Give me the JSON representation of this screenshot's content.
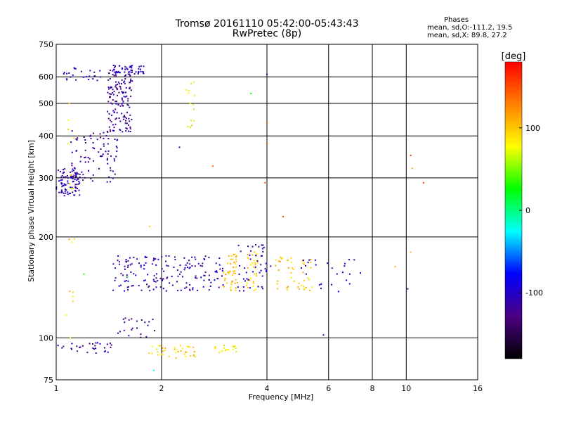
{
  "header": {
    "title_line1": "Tromsø 20161110 05:42:00-05:43:43",
    "title_line2": "RwPretec (8p)",
    "phases_title": "Phases",
    "phases_o": "mean, sd,O:-111.2, 19.5",
    "phases_x": "mean, sd,X:  89.8, 27.2"
  },
  "colorbar": {
    "label": "[deg]",
    "ticks": [
      "100",
      "0",
      "-100"
    ],
    "range": [
      -180,
      180
    ],
    "stops": [
      "#ff0000",
      "#ff8000",
      "#ffff00",
      "#00ff00",
      "#00ffff",
      "#0000ff",
      "#4b0082",
      "#000000"
    ]
  },
  "chart_data": {
    "type": "scatter",
    "xlabel": "Frequency [MHz]",
    "ylabel": "Stationary phase Virtual Height [km]",
    "xscale": "log",
    "yscale": "log",
    "xlim": [
      1,
      16
    ],
    "ylim": [
      75,
      750
    ],
    "xticks": [
      1,
      2,
      4,
      6,
      8,
      10,
      16
    ],
    "xtick_labels": [
      "1",
      "2",
      "4",
      "6",
      "8",
      "10",
      "16"
    ],
    "yticks": [
      75,
      100,
      200,
      300,
      400,
      500,
      600,
      750
    ],
    "ytick_labels": [
      "75",
      "100",
      "200",
      "300",
      "400",
      "500",
      "600",
      "750"
    ],
    "grid": true,
    "clusters": [
      {
        "phase": -110,
        "x": [
          1.0,
          1.17
        ],
        "y": [
          265,
          320
        ],
        "n": 90
      },
      {
        "phase": -115,
        "x": [
          1.1,
          1.5
        ],
        "y": [
          290,
          420
        ],
        "n": 90
      },
      {
        "phase": -120,
        "x": [
          1.4,
          1.65
        ],
        "y": [
          410,
          650
        ],
        "n": 150
      },
      {
        "phase": -100,
        "x": [
          1.45,
          1.8
        ],
        "y": [
          600,
          650
        ],
        "n": 45
      },
      {
        "phase": -100,
        "x": [
          1.05,
          1.35
        ],
        "y": [
          585,
          640
        ],
        "n": 25
      },
      {
        "phase": 80,
        "x": [
          2.35,
          2.5
        ],
        "y": [
          420,
          590
        ],
        "n": 14
      },
      {
        "phase": 90,
        "x": [
          1.08,
          1.13
        ],
        "y": [
          190,
          560
        ],
        "n": 12
      },
      {
        "phase": -110,
        "x": [
          1.45,
          3.0
        ],
        "y": [
          138,
          176
        ],
        "n": 170
      },
      {
        "phase": 105,
        "x": [
          3.0,
          3.3
        ],
        "y": [
          138,
          178
        ],
        "n": 45
      },
      {
        "phase": 95,
        "x": [
          3.5,
          3.8
        ],
        "y": [
          138,
          185
        ],
        "n": 35
      },
      {
        "phase": -105,
        "x": [
          3.3,
          4.1
        ],
        "y": [
          138,
          190
        ],
        "n": 45
      },
      {
        "phase": 100,
        "x": [
          4.2,
          5.4
        ],
        "y": [
          138,
          175
        ],
        "n": 45
      },
      {
        "phase": -100,
        "x": [
          5.0,
          7.5
        ],
        "y": [
          136,
          172
        ],
        "n": 25
      },
      {
        "phase": 95,
        "x": [
          1.8,
          2.5
        ],
        "y": [
          87,
          95
        ],
        "n": 40
      },
      {
        "phase": 85,
        "x": [
          2.8,
          3.3
        ],
        "y": [
          90,
          95
        ],
        "n": 20
      },
      {
        "phase": -115,
        "x": [
          1.0,
          1.45
        ],
        "y": [
          90,
          97
        ],
        "n": 30
      },
      {
        "phase": -125,
        "x": [
          1.5,
          1.95
        ],
        "y": [
          100,
          115
        ],
        "n": 22
      },
      {
        "phase": 90,
        "x": [
          1.05,
          1.12
        ],
        "y": [
          95,
          140
        ],
        "n": 6
      }
    ],
    "points": [
      {
        "x": 2.8,
        "y": 325,
        "phase": 150
      },
      {
        "x": 4.45,
        "y": 230,
        "phase": 160
      },
      {
        "x": 4.0,
        "y": 440,
        "phase": 150
      },
      {
        "x": 4.0,
        "y": 380,
        "phase": 150
      },
      {
        "x": 3.95,
        "y": 290,
        "phase": 150
      },
      {
        "x": 4.0,
        "y": 610,
        "phase": -100
      },
      {
        "x": 3.6,
        "y": 535,
        "phase": 30
      },
      {
        "x": 2.25,
        "y": 370,
        "phase": -100
      },
      {
        "x": 10.3,
        "y": 350,
        "phase": 160
      },
      {
        "x": 10.4,
        "y": 320,
        "phase": 110
      },
      {
        "x": 11.2,
        "y": 290,
        "phase": 160
      },
      {
        "x": 10.3,
        "y": 180,
        "phase": 100
      },
      {
        "x": 10.1,
        "y": 140,
        "phase": -120
      },
      {
        "x": 9.3,
        "y": 163,
        "phase": 110
      },
      {
        "x": 5.8,
        "y": 102,
        "phase": -110
      },
      {
        "x": 1.9,
        "y": 80,
        "phase": -30
      },
      {
        "x": 1.85,
        "y": 215,
        "phase": 100
      },
      {
        "x": 1.6,
        "y": 152,
        "phase": 40
      },
      {
        "x": 1.2,
        "y": 155,
        "phase": 30
      }
    ]
  }
}
